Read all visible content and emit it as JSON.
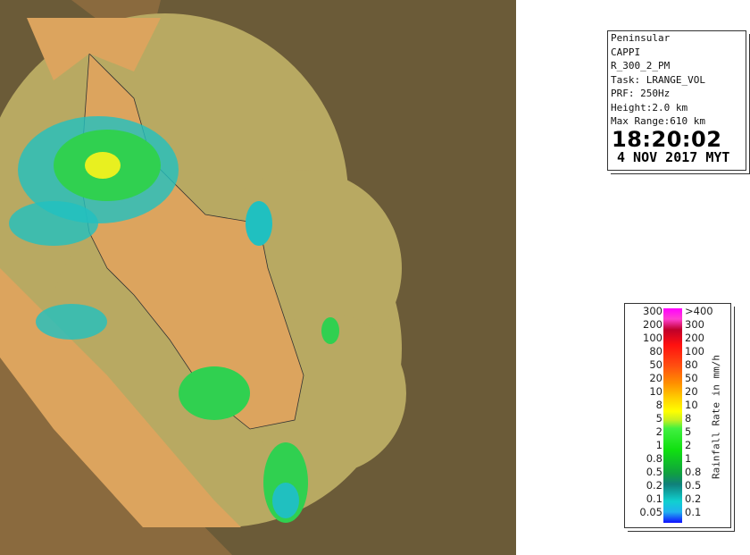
{
  "info": {
    "lines": [
      "Peninsular",
      "CAPPI",
      "R_300_2_PM",
      "Task: LRANGE_VOL",
      "PRF: 250Hz",
      "Height:2.0 km",
      "Max Range:610 km"
    ],
    "time": "18:20:02",
    "date": "4 NOV 2017 MYT"
  },
  "legend": {
    "title": "Rainfall Rate in mm/h",
    "left_labels": [
      "300",
      "200",
      "100",
      "80",
      "50",
      "20",
      "10",
      "8",
      "5",
      "2",
      "1",
      "0.8",
      "0.5",
      "0.2",
      "0.1",
      "0.05"
    ],
    "right_labels": [
      ">400",
      "300",
      "200",
      "100",
      "80",
      "50",
      "20",
      "10",
      "8",
      "5",
      "2",
      "1",
      "0.8",
      "0.5",
      "0.2",
      "0.1"
    ]
  },
  "colors": {
    "background": "#6b5b38",
    "outside_land": "#8a6a3e",
    "coverage_sea": "#b8a962",
    "coverage_land": "#dca45e",
    "rain_light": "#20c0c0",
    "rain_moderate": "#30e040",
    "rain_heavy": "#ffff00"
  }
}
